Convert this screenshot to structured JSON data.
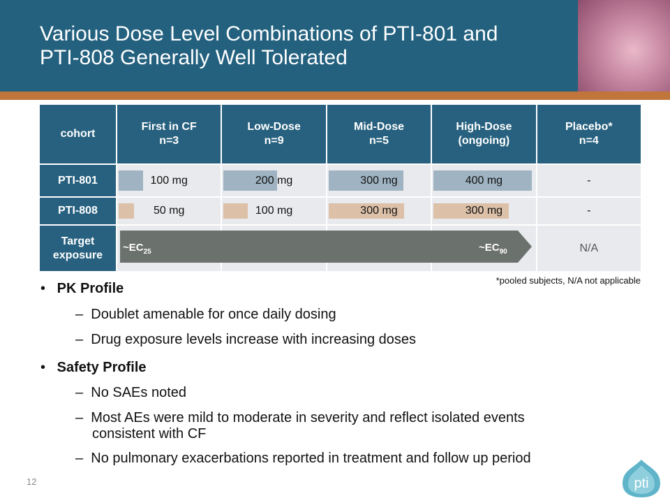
{
  "header": {
    "title": [
      "Various Dose Level Combinations of PTI-801 and",
      "PTI-808 Generally Well Tolerated"
    ]
  },
  "table": {
    "columns": [
      {
        "label": "cohort"
      },
      {
        "label": "First in CF",
        "sub": "n=3"
      },
      {
        "label": "Low-Dose",
        "sub": "n=9"
      },
      {
        "label": "Mid-Dose",
        "sub": "n=5"
      },
      {
        "label": "High-Dose",
        "sub": "(ongoing)"
      },
      {
        "label": "Placebo*",
        "sub": "n=4"
      }
    ],
    "rows": [
      [
        "PTI-801",
        "100 mg",
        "200 mg",
        "300 mg",
        "400 mg",
        "-"
      ],
      [
        "PTI-808",
        "50 mg",
        "100 mg",
        "300 mg",
        "300 mg",
        "-"
      ]
    ],
    "target": {
      "label": "Target exposure",
      "start": {
        "text": "~EC",
        "sub": "25"
      },
      "end": {
        "text": "~EC",
        "sub": "90"
      },
      "placebo": "N/A"
    },
    "footnote": "*pooled subjects, N/A not applicable"
  },
  "bullets": [
    {
      "title": "PK Profile",
      "items": [
        "Doublet amenable for once daily dosing",
        "Drug exposure levels increase with increasing doses"
      ]
    },
    {
      "title": "Safety Profile",
      "items": [
        "No SAEs noted",
        "Most AEs were mild to moderate in severity and reflect isolated events consistent with CF",
        "No pulmonary exacerbations reported in treatment and follow up period"
      ]
    }
  ],
  "page_number": "12",
  "logo": "pti"
}
